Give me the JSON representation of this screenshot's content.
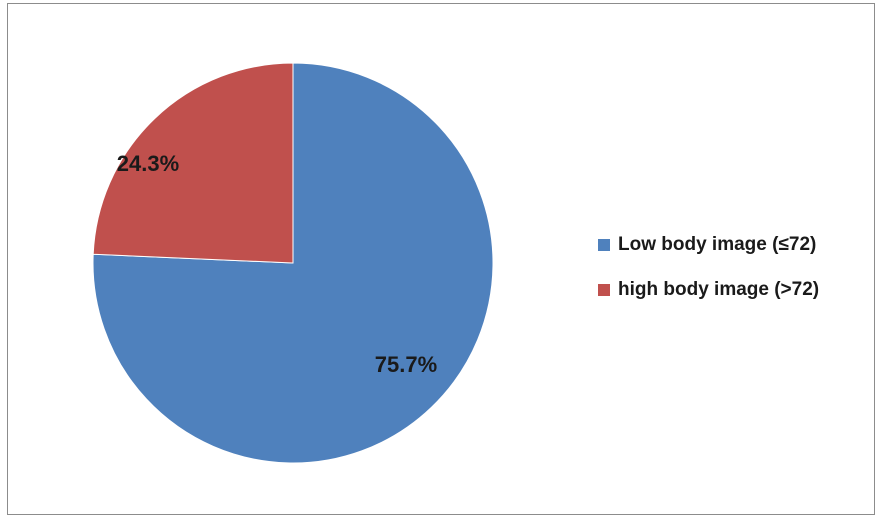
{
  "chart_data": {
    "type": "pie",
    "title": "",
    "series": [
      {
        "name": "Low body image (≤72)",
        "value": 75.7,
        "label": "75.7%",
        "color": "#4F81BD"
      },
      {
        "name": "high body image (>72)",
        "value": 24.3,
        "label": "24.3%",
        "color": "#C0504D"
      }
    ],
    "legend_position": "right"
  },
  "legend": {
    "items": [
      {
        "label": "Low body image (≤72)",
        "color": "#4F81BD"
      },
      {
        "label": "high body image (>72)",
        "color": "#C0504D"
      }
    ]
  }
}
